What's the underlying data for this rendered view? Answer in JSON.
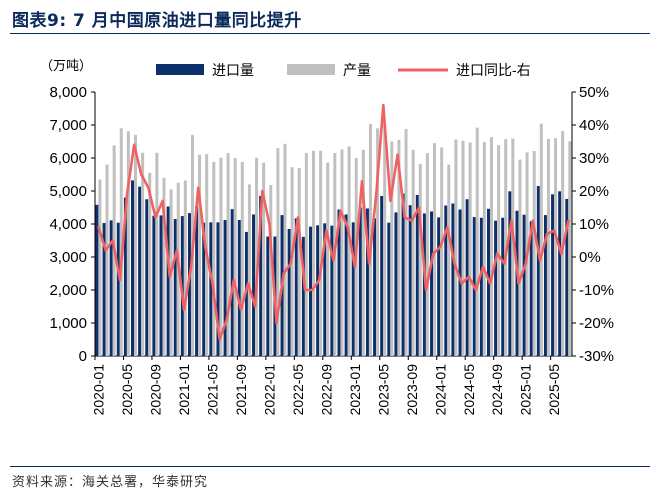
{
  "figure": {
    "title": "图表9:  7 月中国原油进口量同比提升",
    "source": "资料来源：海关总署，华泰研究"
  },
  "chart_data": {
    "type": "bar",
    "title": "",
    "left_axis_unit": "（万吨）",
    "legend_position": "top",
    "colors": {
      "imports": "#0d2f6b",
      "production": "#c0c0c0",
      "yoy": "#f06262"
    },
    "ylim_left": [
      0,
      8000
    ],
    "yticks_left": [
      "0",
      "1,000",
      "2,000",
      "3,000",
      "4,000",
      "5,000",
      "6,000",
      "7,000",
      "8,000"
    ],
    "ylim_right": [
      -30,
      50
    ],
    "yticks_right": [
      "-30%",
      "-20%",
      "-10%",
      "0%",
      "10%",
      "20%",
      "30%",
      "40%",
      "50%"
    ],
    "x_tick_labels": [
      "2020-01",
      "2020-05",
      "2020-09",
      "2021-01",
      "2021-05",
      "2021-09",
      "2022-01",
      "2022-05",
      "2022-09",
      "2023-01",
      "2023-05",
      "2023-09",
      "2024-01",
      "2024-05",
      "2024-09",
      "2025-01",
      "2025-05"
    ],
    "x_tick_step": 4,
    "categories": [
      "2020-01",
      "2020-02",
      "2020-03",
      "2020-04",
      "2020-05",
      "2020-06",
      "2020-07",
      "2020-08",
      "2020-09",
      "2020-10",
      "2020-11",
      "2020-12",
      "2021-01",
      "2021-02",
      "2021-03",
      "2021-04",
      "2021-05",
      "2021-06",
      "2021-07",
      "2021-08",
      "2021-09",
      "2021-10",
      "2021-11",
      "2021-12",
      "2022-01",
      "2022-02",
      "2022-03",
      "2022-04",
      "2022-05",
      "2022-06",
      "2022-07",
      "2022-08",
      "2022-09",
      "2022-10",
      "2022-11",
      "2022-12",
      "2023-01",
      "2023-02",
      "2023-03",
      "2023-04",
      "2023-05",
      "2023-06",
      "2023-07",
      "2023-08",
      "2023-09",
      "2023-10",
      "2023-11",
      "2023-12",
      "2024-01",
      "2024-02",
      "2024-03",
      "2024-04",
      "2024-05",
      "2024-06",
      "2024-07",
      "2024-08",
      "2024-09",
      "2024-10",
      "2024-11",
      "2024-12",
      "2025-01",
      "2025-02",
      "2025-03",
      "2025-04",
      "2025-05",
      "2025-06",
      "2025-07"
    ],
    "series": [
      {
        "name": "进口量",
        "type": "bar",
        "axis": "left",
        "values": [
          4580,
          4030,
          4110,
          4040,
          4800,
          5320,
          5130,
          4750,
          4250,
          4260,
          4530,
          4150,
          4240,
          4330,
          4540,
          4040,
          4050,
          4050,
          4120,
          4450,
          4120,
          3760,
          4290,
          4850,
          3620,
          3620,
          4270,
          3850,
          4170,
          3610,
          3920,
          3960,
          4020,
          3950,
          4440,
          4290,
          4050,
          4500,
          4470,
          4170,
          4850,
          4040,
          4350,
          4920,
          4570,
          4880,
          4320,
          4380,
          4200,
          4560,
          4620,
          4440,
          4750,
          4210,
          4190,
          4460,
          4100,
          4190,
          4990,
          4400,
          4280,
          4080,
          5150,
          4270,
          4900,
          4990,
          4760
        ]
      },
      {
        "name": "产量",
        "type": "bar",
        "axis": "left",
        "values": [
          5350,
          5800,
          6380,
          6900,
          6810,
          6700,
          6160,
          5550,
          6160,
          5400,
          5050,
          5250,
          5320,
          6700,
          6100,
          6120,
          5880,
          6010,
          6150,
          6000,
          5880,
          5200,
          6010,
          5860,
          5180,
          6300,
          6430,
          5720,
          5700,
          6150,
          6220,
          6220,
          5860,
          6150,
          6260,
          6350,
          6000,
          6250,
          7030,
          6900,
          7000,
          6500,
          6550,
          6880,
          6250,
          5820,
          6150,
          6450,
          6320,
          5800,
          6560,
          6520,
          6470,
          6920,
          6480,
          6630,
          6390,
          6570,
          6590,
          5950,
          6170,
          6210,
          7040,
          6580,
          6600,
          6820,
          6510
        ]
      },
      {
        "name": "进口同比-右",
        "type": "line",
        "axis": "right",
        "values": [
          9,
          2,
          5,
          -7,
          19,
          34,
          25,
          21,
          12,
          17,
          -6,
          2,
          -16,
          -3,
          21,
          3,
          -8,
          -25,
          -19,
          -7,
          -16,
          -8,
          -15,
          20,
          10,
          -20,
          -5,
          -2,
          12,
          -10,
          -10,
          -7,
          8,
          -1,
          14,
          9,
          -3,
          23,
          -2,
          19,
          46,
          17,
          31,
          12,
          11,
          15,
          -10,
          1,
          3,
          9,
          -2,
          -8,
          -6,
          -10,
          -3,
          -8,
          1,
          -2,
          11,
          -8,
          -2,
          11,
          -1,
          7,
          8,
          1,
          11
        ]
      }
    ]
  }
}
